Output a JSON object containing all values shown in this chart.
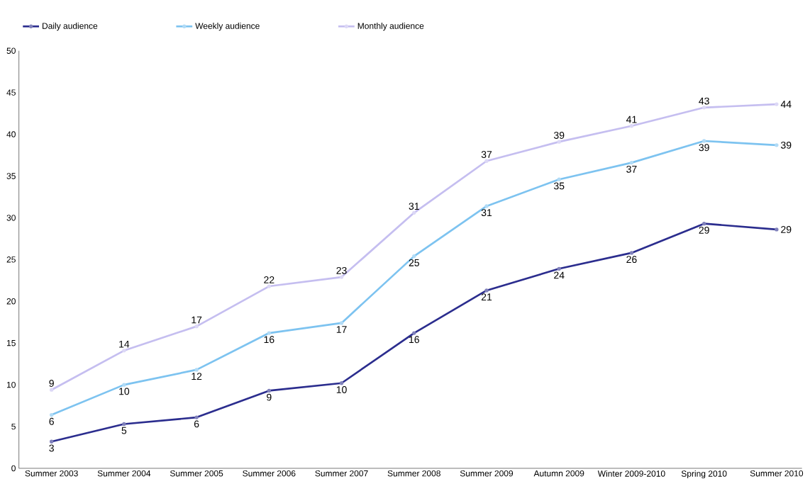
{
  "chart_data": {
    "type": "line",
    "categories": [
      "Summer 2003",
      "Summer 2004",
      "Summer 2005",
      "Summer 2006",
      "Summer 2007",
      "Summer 2008",
      "Summer 2009",
      "Autumn 2009",
      "Winter 2009-2010",
      "Spring 2010",
      "Summer 2010"
    ],
    "series": [
      {
        "name": "Daily audience",
        "color": "#2b2d8e",
        "values": [
          3.2,
          5.3,
          6.1,
          9.3,
          10.2,
          16.2,
          21.3,
          23.9,
          25.8,
          29.3,
          28.6
        ],
        "value_labels": [
          "3",
          "5",
          "6",
          "9",
          "10",
          "16",
          "21",
          "24",
          "26",
          "29",
          "29"
        ]
      },
      {
        "name": "Weekly audience",
        "color": "#7dc3f0",
        "values": [
          6.4,
          10.0,
          11.8,
          16.2,
          17.4,
          25.4,
          31.4,
          34.6,
          36.6,
          39.2,
          38.7
        ],
        "value_labels": [
          "6",
          "10",
          "12",
          "16",
          "17",
          "25",
          "31",
          "35",
          "37",
          "39",
          "39"
        ]
      },
      {
        "name": "Monthly audience",
        "color": "#c5bef0",
        "values": [
          9.4,
          14.1,
          17.0,
          21.8,
          22.9,
          30.6,
          36.8,
          39.1,
          41.0,
          43.2,
          43.6
        ],
        "value_labels": [
          "9",
          "14",
          "17",
          "22",
          "23",
          "31",
          "37",
          "39",
          "41",
          "43",
          "44"
        ]
      }
    ],
    "ylim": [
      0,
      50
    ],
    "yticks": [
      0,
      5,
      10,
      15,
      20,
      25,
      30,
      35,
      40,
      45,
      50
    ],
    "grid": false,
    "legend": "top left",
    "marker": "circle",
    "line_style": "solid"
  }
}
